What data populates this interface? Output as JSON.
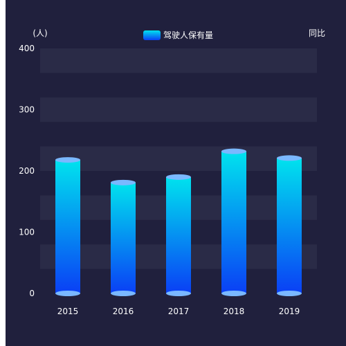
{
  "chart_data": {
    "type": "bar",
    "ylabel": "(人)",
    "y2label": "同比",
    "categories": [
      "2015",
      "2016",
      "2017",
      "2018",
      "2019"
    ],
    "series": [
      {
        "name": "驾驶人保有量",
        "values": [
          218,
          181,
          190,
          232,
          221
        ]
      }
    ],
    "ylim": [
      0,
      400
    ],
    "yticks": [
      0,
      100,
      200,
      300,
      400
    ],
    "grid": true,
    "legend": "top-center"
  },
  "colors": {
    "background": "#20203d",
    "band": "#2a2b47",
    "bar_top": "#00e3ee",
    "bar_bottom": "#0a3ff5",
    "cap": "#7ab8ff"
  }
}
